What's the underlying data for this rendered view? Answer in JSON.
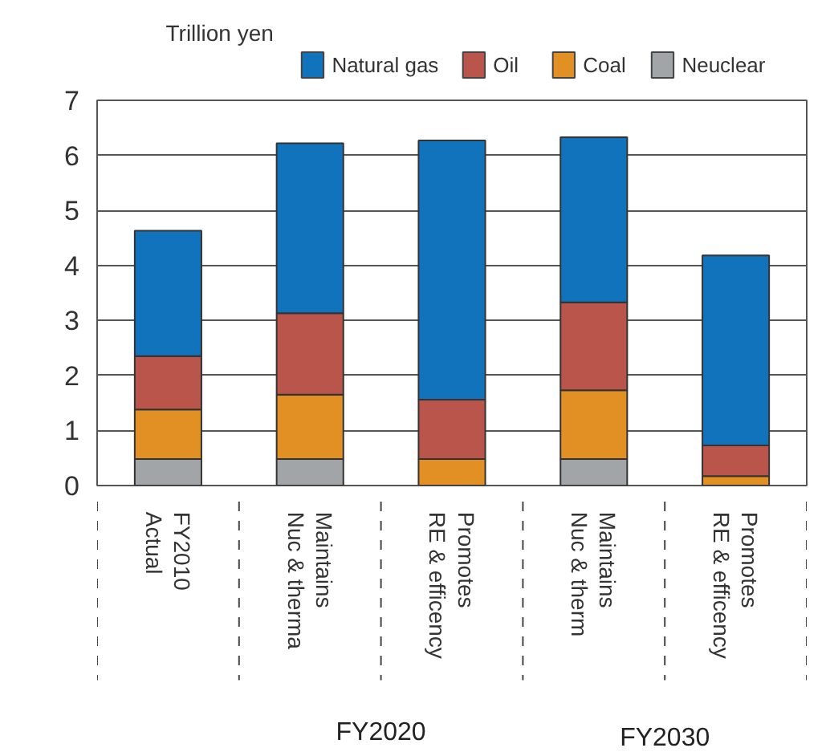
{
  "chart_data": {
    "type": "bar",
    "stacked": true,
    "ylabel": "Trillion yen",
    "categories": [
      "FY2010\nActual",
      "Maintains\nNuc & therma",
      "Promotes\nRE & efficency",
      "Maintains\nNuc & therm",
      "Promotes\nRE & efficency"
    ],
    "series": [
      {
        "name": "Neuclear",
        "color": "#a2a5a8",
        "values": [
          0.48,
          0.48,
          0,
          0.48,
          0
        ]
      },
      {
        "name": "Coal",
        "color": "#e28f24",
        "values": [
          0.9,
          1.17,
          0.48,
          1.25,
          0.17
        ]
      },
      {
        "name": "Oil",
        "color": "#b9554a",
        "values": [
          0.97,
          1.48,
          1.08,
          1.6,
          0.56
        ]
      },
      {
        "name": "Natural gas",
        "color": "#1273bd",
        "values": [
          2.28,
          3.09,
          4.71,
          3.0,
          3.45
        ]
      }
    ],
    "ylim": [
      0,
      7
    ],
    "yticks": [
      0,
      1,
      2,
      3,
      4,
      5,
      6,
      7
    ],
    "grid": "y",
    "legend": "top",
    "annotations": [
      "FY2020",
      "FY2030"
    ]
  }
}
